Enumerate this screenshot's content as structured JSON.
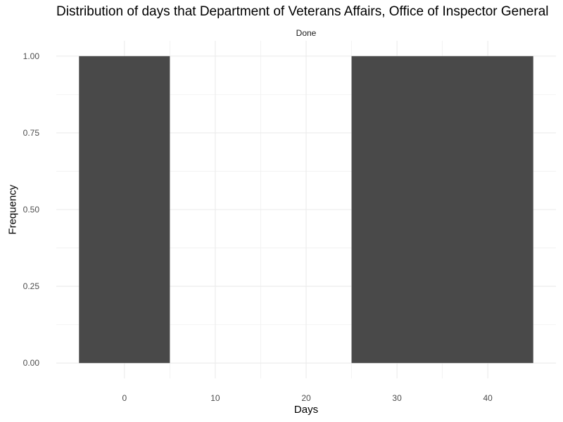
{
  "chart_data": {
    "type": "bar",
    "title": "Distribution of days that Department of Veterans Affairs, Office of Inspector General",
    "facet_label": "Done",
    "xlabel": "Days",
    "ylabel": "Frequency",
    "bins": [
      {
        "x_start": -5,
        "x_end": 5,
        "value": 1
      },
      {
        "x_start": 25,
        "x_end": 45,
        "value": 1
      }
    ],
    "xlim": [
      -7.5,
      47.5
    ],
    "ylim": [
      -0.05,
      1.05
    ],
    "x_ticks": [
      0,
      10,
      20,
      30,
      40
    ],
    "y_ticks": [
      "0.00",
      "0.25",
      "0.50",
      "0.75",
      "1.00"
    ],
    "grid": true,
    "bar_color": "#494949",
    "grid_color": "#ebebeb"
  }
}
